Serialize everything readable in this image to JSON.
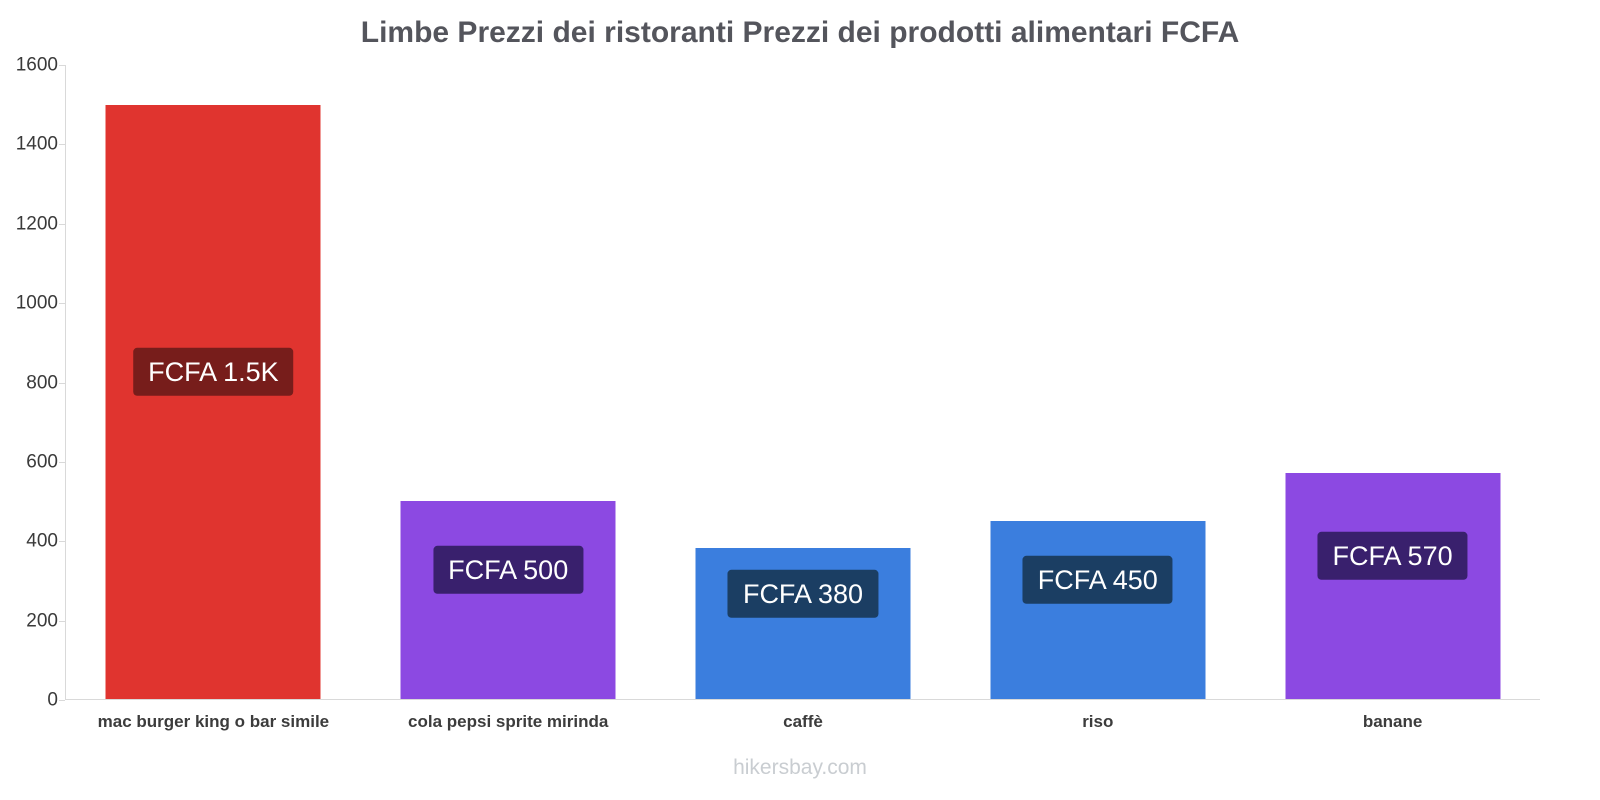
{
  "header": {
    "title": "Limbe Prezzi dei ristoranti Prezzi dei prodotti alimentari FCFA"
  },
  "footer": {
    "watermark": "hikersbay.com"
  },
  "chart_data": {
    "type": "bar",
    "title": "Limbe Prezzi dei ristoranti Prezzi dei prodotti alimentari FCFA",
    "categories": [
      "mac burger king o bar simile",
      "cola pepsi sprite mirinda",
      "caffè",
      "riso",
      "banane"
    ],
    "values": [
      1500,
      500,
      380,
      450,
      570
    ],
    "bar_labels": [
      "FCFA 1.5K",
      "FCFA 500",
      "FCFA 380",
      "FCFA 450",
      "FCFA 570"
    ],
    "bar_colors": [
      "#e0342f",
      "#8c49e2",
      "#3b7ede",
      "#3b7ede",
      "#8c49e2"
    ],
    "label_bg_colors": [
      "#771d1b",
      "#39206d",
      "#1b3e63",
      "#1b3e63",
      "#39206d"
    ],
    "xlabel": "",
    "ylabel": "",
    "ylim": [
      0,
      1600
    ],
    "yticks": [
      0,
      200,
      400,
      600,
      800,
      1000,
      1200,
      1400,
      1600
    ],
    "grid": false,
    "legend": false
  }
}
